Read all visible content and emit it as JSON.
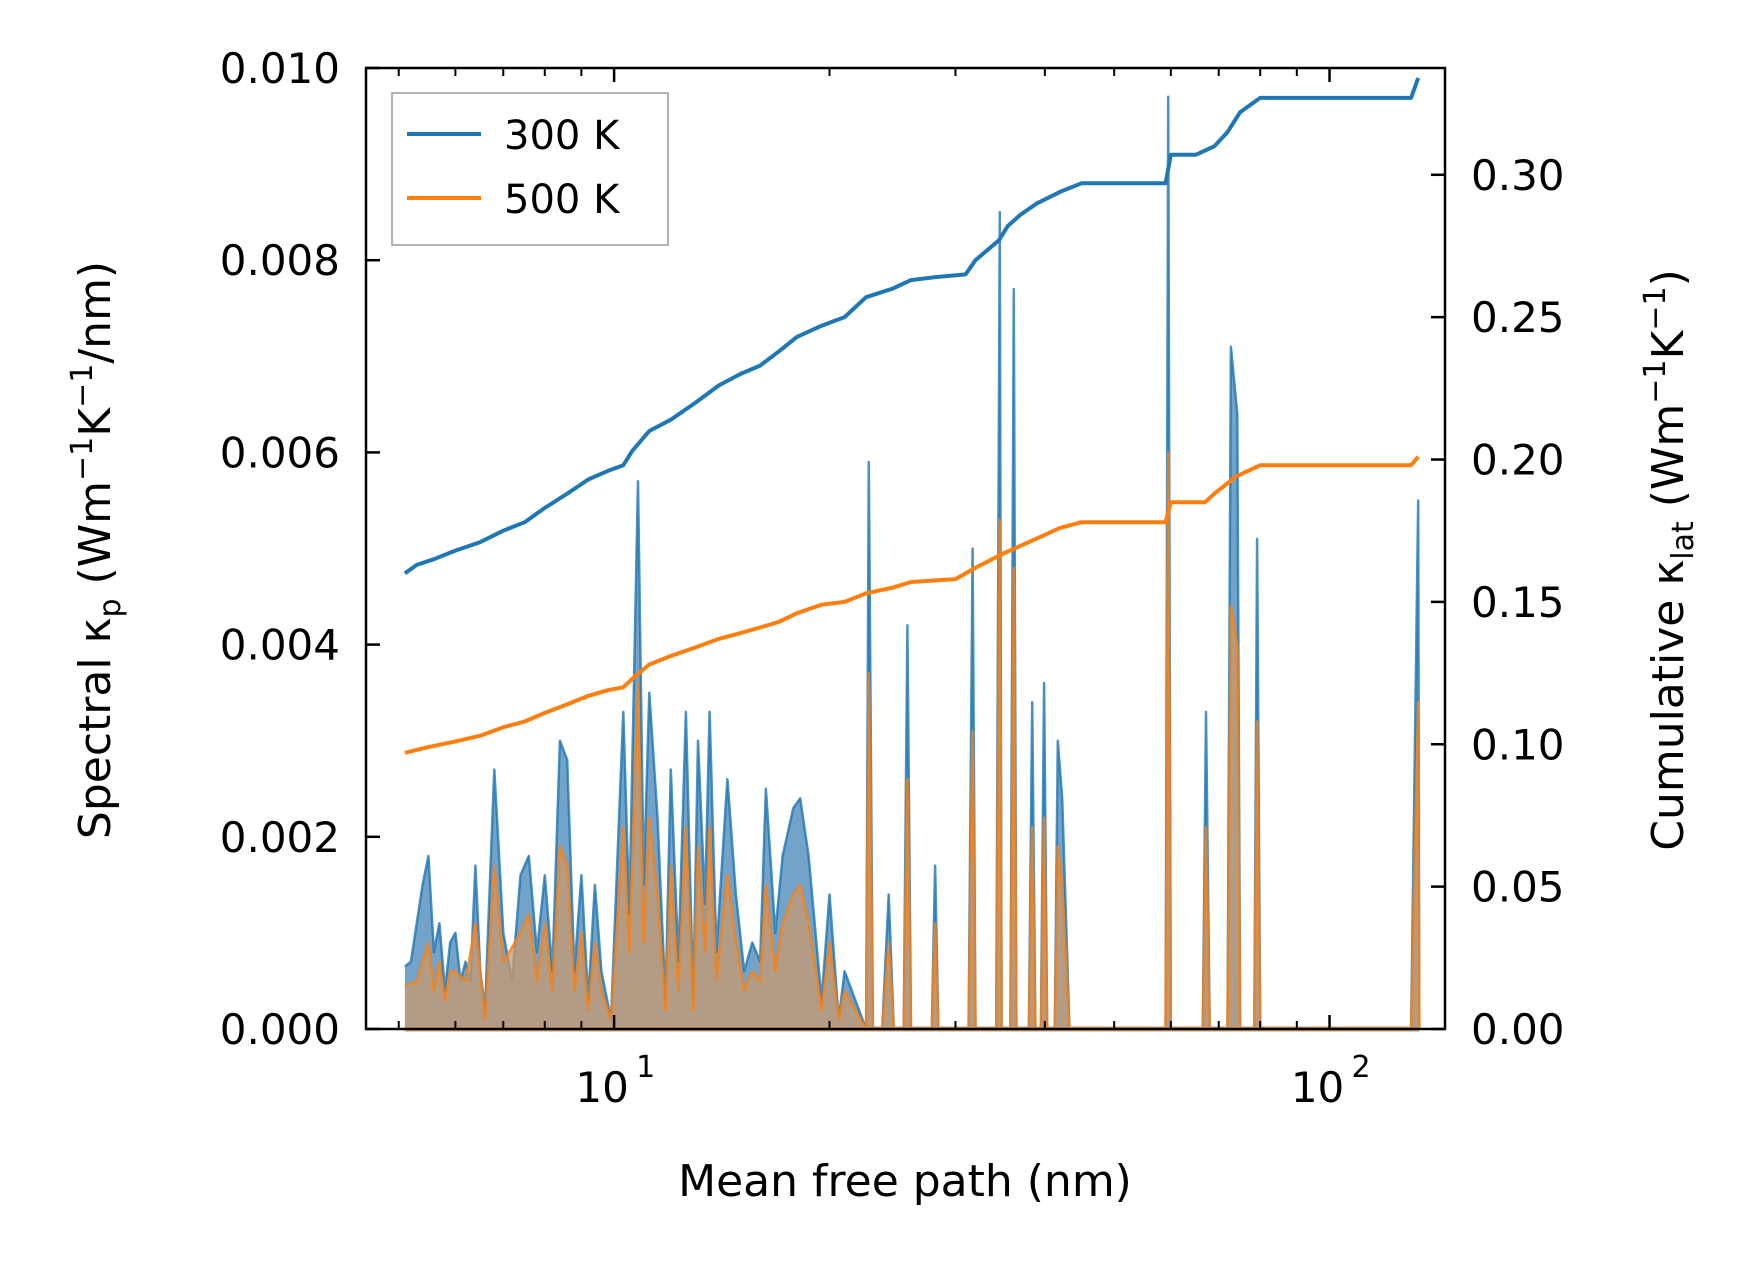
{
  "chart_data": {
    "type": "line",
    "xlabel": "Mean free path (nm)",
    "ylabel_left": "Spectral κp (Wm⁻¹K⁻¹/nm)",
    "ylabel_left_parts": {
      "main": "Spectral κ",
      "sub": "p",
      "rest": " (Wm",
      "sup1": "−1",
      "mid": "K",
      "sup2": "−1",
      "end": "/nm)"
    },
    "ylabel_right": "Cumulative κlat (Wm⁻¹K⁻¹)",
    "ylabel_right_parts": {
      "main": "Cumulative κ",
      "sub": "lat",
      "rest": " (Wm",
      "sup1": "−1",
      "mid": "K",
      "sup2": "−1",
      "end": ")"
    },
    "xscale": "log",
    "xlim": [
      4.5,
      145
    ],
    "ylim_left": [
      0,
      0.01
    ],
    "ylim_right": [
      0,
      0.3375
    ],
    "xticks": [
      {
        "value": 10,
        "base": "10",
        "exp": "1"
      },
      {
        "value": 100,
        "base": "10",
        "exp": "2"
      }
    ],
    "yticks_left": [
      "0.000",
      "0.002",
      "0.004",
      "0.006",
      "0.008",
      "0.010"
    ],
    "yticks_right": [
      "0.00",
      "0.05",
      "0.10",
      "0.15",
      "0.20",
      "0.25",
      "0.30"
    ],
    "legend": {
      "placement": "top-left",
      "entries": [
        {
          "label": "300 K",
          "color": "#1f77b4"
        },
        {
          "label": "500 K",
          "color": "#ff7f0e"
        }
      ]
    },
    "colors": {
      "t300": "#1f77b4",
      "t500": "#ff7f0e",
      "fill300": "#5b93c0",
      "fill500": "#c89a6e"
    },
    "cumulative": [
      {
        "name": "300 K",
        "axis": "right",
        "points": [
          [
            5.1,
            0.16
          ],
          [
            5.3,
            0.163
          ],
          [
            5.6,
            0.165
          ],
          [
            6.0,
            0.168
          ],
          [
            6.5,
            0.171
          ],
          [
            7.0,
            0.175
          ],
          [
            7.5,
            0.178
          ],
          [
            8.0,
            0.183
          ],
          [
            8.6,
            0.188
          ],
          [
            9.2,
            0.193
          ],
          [
            9.8,
            0.196
          ],
          [
            10.3,
            0.198
          ],
          [
            10.6,
            0.203
          ],
          [
            11.2,
            0.21
          ],
          [
            12.0,
            0.214
          ],
          [
            13.0,
            0.22
          ],
          [
            14.0,
            0.226
          ],
          [
            15.0,
            0.23
          ],
          [
            16.0,
            0.233
          ],
          [
            17.0,
            0.238
          ],
          [
            18.0,
            0.243
          ],
          [
            19.5,
            0.247
          ],
          [
            21.0,
            0.25
          ],
          [
            22.5,
            0.257
          ],
          [
            24.5,
            0.26
          ],
          [
            26.0,
            0.263
          ],
          [
            28.0,
            0.264
          ],
          [
            31.0,
            0.265
          ],
          [
            32.0,
            0.27
          ],
          [
            34.5,
            0.277
          ],
          [
            35.5,
            0.282
          ],
          [
            37.0,
            0.286
          ],
          [
            39.0,
            0.29
          ],
          [
            42.0,
            0.294
          ],
          [
            45.0,
            0.297
          ],
          [
            50.0,
            0.297
          ],
          [
            59.0,
            0.297
          ],
          [
            60.0,
            0.307
          ],
          [
            65.0,
            0.307
          ],
          [
            69.0,
            0.31
          ],
          [
            72.0,
            0.315
          ],
          [
            75.0,
            0.322
          ],
          [
            80.0,
            0.327
          ],
          [
            85.0,
            0.327
          ],
          [
            100.0,
            0.327
          ],
          [
            130.0,
            0.327
          ],
          [
            133.0,
            0.334
          ]
        ]
      },
      {
        "name": "500 K",
        "axis": "right",
        "points": [
          [
            5.1,
            0.097
          ],
          [
            5.5,
            0.099
          ],
          [
            6.0,
            0.101
          ],
          [
            6.5,
            0.103
          ],
          [
            7.0,
            0.106
          ],
          [
            7.5,
            0.108
          ],
          [
            8.0,
            0.111
          ],
          [
            8.6,
            0.114
          ],
          [
            9.2,
            0.117
          ],
          [
            9.8,
            0.119
          ],
          [
            10.3,
            0.12
          ],
          [
            10.6,
            0.123
          ],
          [
            11.2,
            0.128
          ],
          [
            12.0,
            0.131
          ],
          [
            13.0,
            0.134
          ],
          [
            14.0,
            0.137
          ],
          [
            15.0,
            0.139
          ],
          [
            16.0,
            0.141
          ],
          [
            17.0,
            0.143
          ],
          [
            18.0,
            0.146
          ],
          [
            19.5,
            0.149
          ],
          [
            21.0,
            0.15
          ],
          [
            22.5,
            0.153
          ],
          [
            24.5,
            0.155
          ],
          [
            26.0,
            0.157
          ],
          [
            30.0,
            0.158
          ],
          [
            32.0,
            0.162
          ],
          [
            35.0,
            0.167
          ],
          [
            38.0,
            0.171
          ],
          [
            42.0,
            0.176
          ],
          [
            45.0,
            0.178
          ],
          [
            59.0,
            0.178
          ],
          [
            60.0,
            0.185
          ],
          [
            67.0,
            0.185
          ],
          [
            69.0,
            0.188
          ],
          [
            74.0,
            0.194
          ],
          [
            80.0,
            0.198
          ],
          [
            130.0,
            0.198
          ],
          [
            133.0,
            0.201
          ]
        ]
      }
    ],
    "spectral": [
      {
        "name": "300 K",
        "axis": "left",
        "points": [
          [
            5.1,
            0.00065
          ],
          [
            5.2,
            0.0007
          ],
          [
            5.4,
            0.0015
          ],
          [
            5.5,
            0.0018
          ],
          [
            5.6,
            0.0008
          ],
          [
            5.7,
            0.0011
          ],
          [
            5.8,
            0.0004
          ],
          [
            5.9,
            0.0009
          ],
          [
            6.0,
            0.001
          ],
          [
            6.1,
            0.0005
          ],
          [
            6.2,
            0.0007
          ],
          [
            6.3,
            0.0005
          ],
          [
            6.4,
            0.0017
          ],
          [
            6.5,
            0.0006
          ],
          [
            6.6,
            0.0002
          ],
          [
            6.8,
            0.0027
          ],
          [
            7.0,
            0.001
          ],
          [
            7.2,
            0.0005
          ],
          [
            7.4,
            0.0016
          ],
          [
            7.6,
            0.0018
          ],
          [
            7.8,
            0.0008
          ],
          [
            8.0,
            0.0016
          ],
          [
            8.2,
            0.0006
          ],
          [
            8.4,
            0.003
          ],
          [
            8.6,
            0.0028
          ],
          [
            8.8,
            0.0006
          ],
          [
            9.0,
            0.0016
          ],
          [
            9.2,
            0.0003
          ],
          [
            9.4,
            0.0015
          ],
          [
            9.6,
            0.0006
          ],
          [
            9.9,
            0.0001
          ],
          [
            10.3,
            0.0033
          ],
          [
            10.5,
            0.0012
          ],
          [
            10.8,
            0.0057
          ],
          [
            11.0,
            0.0015
          ],
          [
            11.2,
            0.0035
          ],
          [
            11.5,
            0.0022
          ],
          [
            11.8,
            0.0003
          ],
          [
            12.0,
            0.0027
          ],
          [
            12.3,
            0.0007
          ],
          [
            12.6,
            0.0033
          ],
          [
            12.9,
            0.0003
          ],
          [
            13.1,
            0.003
          ],
          [
            13.4,
            0.0013
          ],
          [
            13.6,
            0.0033
          ],
          [
            13.9,
            0.0008
          ],
          [
            14.4,
            0.0026
          ],
          [
            14.8,
            0.0014
          ],
          [
            15.2,
            0.0006
          ],
          [
            15.6,
            0.0009
          ],
          [
            16.0,
            0.0007
          ],
          [
            16.3,
            0.0025
          ],
          [
            16.8,
            0.001
          ],
          [
            17.2,
            0.0018
          ],
          [
            17.8,
            0.0023
          ],
          [
            18.2,
            0.0024
          ],
          [
            18.7,
            0.0018
          ],
          [
            19.5,
            0.0003
          ],
          [
            20.0,
            0.0014
          ],
          [
            20.6,
            0.0001
          ],
          [
            21.0,
            0.0006
          ],
          [
            22.5,
            0.0
          ],
          [
            22.7,
            0.0059
          ],
          [
            23.0,
            0.0
          ],
          [
            23.7,
            0.0
          ],
          [
            24.2,
            0.0014
          ],
          [
            24.6,
            0.0
          ],
          [
            25.4,
            0.0
          ],
          [
            25.7,
            0.0042
          ],
          [
            26.0,
            0.0
          ],
          [
            27.8,
            0.0
          ],
          [
            28.1,
            0.0017
          ],
          [
            28.4,
            0.0
          ],
          [
            31.3,
            0.0
          ],
          [
            31.7,
            0.005
          ],
          [
            32.0,
            0.0
          ],
          [
            34.2,
            0.0
          ],
          [
            34.6,
            0.0085
          ],
          [
            34.8,
            0.0
          ],
          [
            35.8,
            0.0
          ],
          [
            36.2,
            0.0077
          ],
          [
            36.5,
            0.0
          ],
          [
            38.0,
            0.0
          ],
          [
            38.4,
            0.0034
          ],
          [
            38.8,
            0.0
          ],
          [
            39.5,
            0.0
          ],
          [
            39.9,
            0.0036
          ],
          [
            40.3,
            0.0
          ],
          [
            41.3,
            0.0
          ],
          [
            41.7,
            0.003
          ],
          [
            42.3,
            0.0024
          ],
          [
            43.3,
            0.0
          ],
          [
            59.0,
            0.0
          ],
          [
            59.5,
            0.0097
          ],
          [
            60.0,
            0.0
          ],
          [
            66.5,
            0.0
          ],
          [
            67.2,
            0.0033
          ],
          [
            68.0,
            0.0
          ],
          [
            72.0,
            0.0
          ],
          [
            72.8,
            0.0071
          ],
          [
            74.3,
            0.0064
          ],
          [
            75.0,
            0.0
          ],
          [
            78.5,
            0.0
          ],
          [
            79.2,
            0.0051
          ],
          [
            80.0,
            0.0
          ],
          [
            130.0,
            0.0
          ],
          [
            133.0,
            0.0055
          ],
          [
            133.5,
            0.0
          ]
        ]
      },
      {
        "name": "500 K",
        "axis": "left",
        "points": [
          [
            5.1,
            0.00045
          ],
          [
            5.3,
            0.0005
          ],
          [
            5.5,
            0.0009
          ],
          [
            5.6,
            0.0004
          ],
          [
            5.7,
            0.0007
          ],
          [
            5.8,
            0.0003
          ],
          [
            5.9,
            0.0006
          ],
          [
            6.0,
            0.0006
          ],
          [
            6.2,
            0.0005
          ],
          [
            6.4,
            0.0011
          ],
          [
            6.6,
            0.0001
          ],
          [
            6.8,
            0.0017
          ],
          [
            7.0,
            0.0007
          ],
          [
            7.4,
            0.001
          ],
          [
            7.6,
            0.0012
          ],
          [
            7.8,
            0.0005
          ],
          [
            8.0,
            0.0011
          ],
          [
            8.2,
            0.0004
          ],
          [
            8.4,
            0.0019
          ],
          [
            8.6,
            0.0017
          ],
          [
            8.8,
            0.0004
          ],
          [
            9.0,
            0.001
          ],
          [
            9.2,
            0.0002
          ],
          [
            9.4,
            0.0009
          ],
          [
            9.6,
            0.0004
          ],
          [
            9.9,
            0.0001
          ],
          [
            10.3,
            0.0021
          ],
          [
            10.5,
            0.0008
          ],
          [
            10.8,
            0.0036
          ],
          [
            11.0,
            0.0009
          ],
          [
            11.2,
            0.0022
          ],
          [
            11.5,
            0.0014
          ],
          [
            11.8,
            0.0002
          ],
          [
            12.0,
            0.0017
          ],
          [
            12.3,
            0.0004
          ],
          [
            12.6,
            0.0021
          ],
          [
            12.9,
            0.0002
          ],
          [
            13.1,
            0.0019
          ],
          [
            13.4,
            0.0008
          ],
          [
            13.6,
            0.0021
          ],
          [
            13.9,
            0.0005
          ],
          [
            14.4,
            0.0016
          ],
          [
            14.8,
            0.0009
          ],
          [
            15.2,
            0.0004
          ],
          [
            15.6,
            0.0006
          ],
          [
            16.0,
            0.0005
          ],
          [
            16.3,
            0.0015
          ],
          [
            16.8,
            0.0006
          ],
          [
            17.2,
            0.0011
          ],
          [
            17.8,
            0.0014
          ],
          [
            18.2,
            0.0015
          ],
          [
            18.7,
            0.0011
          ],
          [
            19.5,
            0.0002
          ],
          [
            20.0,
            0.0009
          ],
          [
            20.6,
            0.0001
          ],
          [
            21.0,
            0.0004
          ],
          [
            22.5,
            0.0
          ],
          [
            22.7,
            0.0037
          ],
          [
            23.0,
            0.0
          ],
          [
            23.7,
            0.0
          ],
          [
            24.2,
            0.0009
          ],
          [
            24.6,
            0.0
          ],
          [
            25.4,
            0.0
          ],
          [
            25.7,
            0.0026
          ],
          [
            26.0,
            0.0
          ],
          [
            27.8,
            0.0
          ],
          [
            28.1,
            0.0011
          ],
          [
            28.4,
            0.0
          ],
          [
            31.3,
            0.0
          ],
          [
            31.7,
            0.0031
          ],
          [
            32.0,
            0.0
          ],
          [
            34.2,
            0.0
          ],
          [
            34.6,
            0.0053
          ],
          [
            34.8,
            0.0
          ],
          [
            35.8,
            0.0
          ],
          [
            36.2,
            0.0048
          ],
          [
            36.5,
            0.0
          ],
          [
            38.0,
            0.0
          ],
          [
            38.4,
            0.0021
          ],
          [
            38.8,
            0.0
          ],
          [
            39.5,
            0.0
          ],
          [
            39.9,
            0.0022
          ],
          [
            40.3,
            0.0
          ],
          [
            41.3,
            0.0
          ],
          [
            41.7,
            0.0019
          ],
          [
            42.3,
            0.0015
          ],
          [
            43.3,
            0.0
          ],
          [
            59.0,
            0.0
          ],
          [
            59.5,
            0.006
          ],
          [
            60.0,
            0.0
          ],
          [
            66.5,
            0.0
          ],
          [
            67.2,
            0.0021
          ],
          [
            68.0,
            0.0
          ],
          [
            72.0,
            0.0
          ],
          [
            72.8,
            0.0044
          ],
          [
            74.3,
            0.004
          ],
          [
            75.0,
            0.0
          ],
          [
            78.5,
            0.0
          ],
          [
            79.2,
            0.0032
          ],
          [
            80.0,
            0.0
          ],
          [
            130.0,
            0.0
          ],
          [
            133.0,
            0.0034
          ],
          [
            133.5,
            0.0
          ]
        ]
      }
    ]
  }
}
